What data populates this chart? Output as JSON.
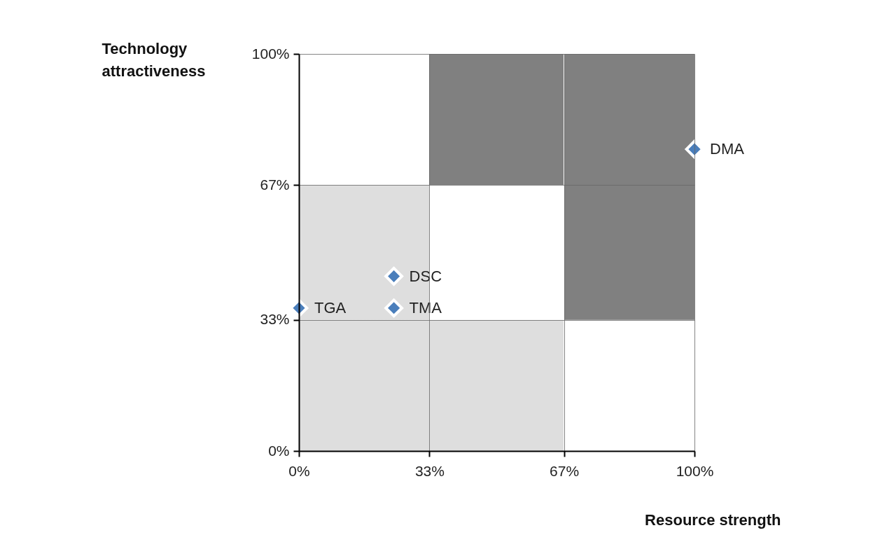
{
  "chart_data": {
    "type": "scatter",
    "xlabel": "Resource strength",
    "ylabel": "Technology attractiveness",
    "xlim": [
      0,
      100
    ],
    "ylim": [
      0,
      100
    ],
    "xticks": [
      {
        "value": 0,
        "label": "0%"
      },
      {
        "value": 33,
        "label": "33%"
      },
      {
        "value": 67,
        "label": "67%"
      },
      {
        "value": 100,
        "label": "100%"
      }
    ],
    "yticks": [
      {
        "value": 0,
        "label": "0%"
      },
      {
        "value": 33,
        "label": "33%"
      },
      {
        "value": 67,
        "label": "67%"
      },
      {
        "value": 100,
        "label": "100%"
      }
    ],
    "series": [
      {
        "name": "TGA",
        "color": "#4a7ebb",
        "x": [
          0
        ],
        "values": [
          36
        ]
      },
      {
        "name": "TMA",
        "color": "#4a7ebb",
        "x": [
          24
        ],
        "values": [
          36
        ]
      },
      {
        "name": "DSC",
        "color": "#4a7ebb",
        "x": [
          24
        ],
        "values": [
          44
        ]
      },
      {
        "name": "DMA",
        "color": "#4a7ebb",
        "x": [
          100
        ],
        "values": [
          76
        ]
      }
    ],
    "grid": true,
    "marker": "diamond"
  }
}
